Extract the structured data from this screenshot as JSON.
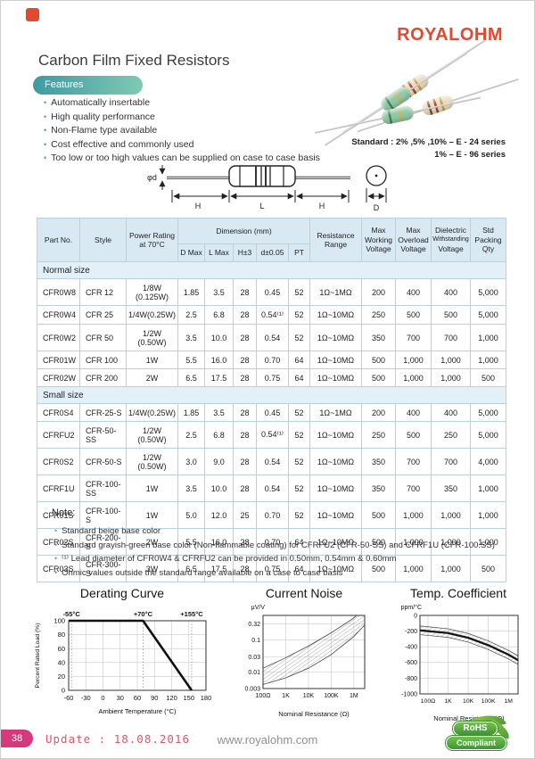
{
  "page": {
    "logo": "ROYALOHM",
    "title": "Carbon Film Fixed Resistors",
    "features_label": "Features",
    "features": [
      "Automatically insertable",
      "High quality performance",
      "Non-Flame type available",
      "Cost effective and commonly used",
      "Too low or too high values can be supplied on case to case basis"
    ],
    "standard_line1": "Standard : 2% ,5% ,10% – E - 24 series",
    "standard_line2": "1% – E - 96 series"
  },
  "diagram": {
    "phi_d": "φd",
    "h_left": "H",
    "l": "L",
    "h_right": "H",
    "d": "D"
  },
  "table": {
    "headers": {
      "part_no": "Part No.",
      "style": "Style",
      "power": "Power Rating at 70°C",
      "dimension": "Dimension (mm)",
      "d_max": "D Max",
      "l_max": "L Max",
      "h": "H±3",
      "d": "d±0.05",
      "pt": "PT",
      "resistance": "Resistance Range",
      "max_working": "Max Working Voltage",
      "max_overload": "Max Overload Voltage",
      "dielectric_1": "Dielectric",
      "dielectric_2": "Withstanding",
      "dielectric_3": "Voltage",
      "packing": "Std Packing Qty"
    },
    "sections": [
      {
        "label": "Normal size",
        "rows": [
          [
            "CFR0W8",
            "CFR 12",
            "1/8W (0.125W)",
            "1.85",
            "3.5",
            "28",
            "0.45",
            "52",
            "1Ω~1MΩ",
            "200",
            "400",
            "400",
            "5,000"
          ],
          [
            "CFR0W4",
            "CFR 25",
            "1/4W(0.25W)",
            "2.5",
            "6.8",
            "28",
            "0.54⁽¹⁾",
            "52",
            "1Ω~10MΩ",
            "250",
            "500",
            "500",
            "5,000"
          ],
          [
            "CFR0W2",
            "CFR 50",
            "1/2W (0.50W)",
            "3.5",
            "10.0",
            "28",
            "0.54",
            "52",
            "1Ω~10MΩ",
            "350",
            "700",
            "700",
            "1,000"
          ],
          [
            "CFR01W",
            "CFR 100",
            "1W",
            "5.5",
            "16.0",
            "28",
            "0.70",
            "64",
            "1Ω~10MΩ",
            "500",
            "1,000",
            "1,000",
            "1,000"
          ],
          [
            "CFR02W",
            "CFR 200",
            "2W",
            "6.5",
            "17.5",
            "28",
            "0.75",
            "64",
            "1Ω~10MΩ",
            "500",
            "1,000",
            "1,000",
            "500"
          ]
        ]
      },
      {
        "label": "Small size",
        "rows": [
          [
            "CFR0S4",
            "CFR-25-S",
            "1/4W(0.25W)",
            "1.85",
            "3.5",
            "28",
            "0.45",
            "52",
            "1Ω~1MΩ",
            "200",
            "400",
            "400",
            "5,000"
          ],
          [
            "CFRFU2",
            "CFR-50-SS",
            "1/2W (0.50W)",
            "2.5",
            "6.8",
            "28",
            "0.54⁽¹⁾",
            "52",
            "1Ω~10MΩ",
            "250",
            "500",
            "250",
            "5,000"
          ],
          [
            "CFR0S2",
            "CFR-50-S",
            "1/2W (0.50W)",
            "3.0",
            "9.0",
            "28",
            "0.54",
            "52",
            "1Ω~10MΩ",
            "350",
            "700",
            "700",
            "4,000"
          ],
          [
            "CFRF1U",
            "CFR-100-SS",
            "1W",
            "3.5",
            "10.0",
            "28",
            "0.54",
            "52",
            "1Ω~10MΩ",
            "350",
            "700",
            "350",
            "1,000"
          ],
          [
            "CFR01S",
            "CFR-100-S",
            "1W",
            "5.0",
            "12.0",
            "25",
            "0.70",
            "52",
            "1Ω~10MΩ",
            "500",
            "1,000",
            "1,000",
            "1,000"
          ],
          [
            "CFR02S",
            "CFR-200-S",
            "2W",
            "5.5",
            "16.0",
            "28",
            "0.70",
            "64",
            "1Ω~10MΩ",
            "500",
            "1,000",
            "1,000",
            "1,000"
          ],
          [
            "CFR03S",
            "CFR-300-S",
            "3W",
            "6.5",
            "17.5",
            "28",
            "0.75",
            "64",
            "1Ω~10MΩ",
            "500",
            "1,000",
            "1,000",
            "500"
          ]
        ]
      }
    ]
  },
  "note": {
    "title": "Note:",
    "items": [
      "Standard beige base color",
      "Standard grayish-green base color (Non-flammable coating) for CFRFU2 (CFR-50-SS) and CFRF1U (CFR-100.SS)",
      "⁽¹⁾ Lead diameter of CFR0W4 & CFRFU2 can be provided in 0.50mm, 0.54mm & 0.60mm",
      "Ohmic values outside the standard range available on a case to case basis"
    ]
  },
  "chart_data": [
    {
      "type": "line",
      "title": "Derating Curve",
      "xlabel": "Ambient Temperature (°C)",
      "ylabel": "Percent Rated Load (%)",
      "x_ticks": [
        -60,
        -30,
        0,
        30,
        60,
        90,
        120,
        150,
        180
      ],
      "y_ticks": [
        0,
        20,
        40,
        60,
        80,
        100
      ],
      "xlim": [
        -60,
        180
      ],
      "ylim": [
        0,
        100
      ],
      "grid": true,
      "series": [
        {
          "name": "derating",
          "points": [
            [
              -60,
              100
            ],
            [
              70,
              100
            ],
            [
              155,
              0
            ]
          ]
        }
      ],
      "annotations": [
        {
          "x": -55,
          "label": "-55°C"
        },
        {
          "x": 70,
          "label": "+70°C"
        },
        {
          "x": 155,
          "label": "+155°C"
        }
      ]
    },
    {
      "type": "area",
      "title": "Current Noise",
      "xlabel": "Nominal Resistance (Ω)",
      "ylabel": "μV/V",
      "x_scale": "log",
      "y_scale": "log",
      "x_ticks": [
        {
          "v": 100,
          "label": "100Ω"
        },
        {
          "v": 1000,
          "label": "1K"
        },
        {
          "v": 10000,
          "label": "10K"
        },
        {
          "v": 100000,
          "label": "100K"
        },
        {
          "v": 1000000,
          "label": "1M"
        }
      ],
      "y_ticks": [
        {
          "v": 0.32,
          "label": "0.32"
        },
        {
          "v": 0.1,
          "label": "0.1"
        },
        {
          "v": 0.03,
          "label": "0.03"
        },
        {
          "v": 0.01,
          "label": "0.01"
        },
        {
          "v": 0.003,
          "label": "0.003"
        }
      ],
      "xlim": [
        100,
        3000000
      ],
      "ylim": [
        0.003,
        0.6
      ],
      "grid": true,
      "band_upper": [
        [
          100,
          0.013
        ],
        [
          1000,
          0.028
        ],
        [
          10000,
          0.065
        ],
        [
          100000,
          0.17
        ],
        [
          1000000,
          0.5
        ],
        [
          3000000,
          1.0
        ]
      ],
      "band_lower": [
        [
          100,
          0.004
        ],
        [
          1000,
          0.0065
        ],
        [
          10000,
          0.013
        ],
        [
          100000,
          0.035
        ],
        [
          1000000,
          0.13
        ],
        [
          3000000,
          0.3
        ]
      ]
    },
    {
      "type": "area",
      "title": "Temp. Coefficient",
      "xlabel": "Nominal Resistance (Ω)",
      "ylabel": "ppm/°C",
      "x_scale": "log",
      "y_scale": "linear",
      "x_ticks": [
        {
          "v": 100,
          "label": "100Ω"
        },
        {
          "v": 1000,
          "label": "1K"
        },
        {
          "v": 10000,
          "label": "10K"
        },
        {
          "v": 100000,
          "label": "100K"
        },
        {
          "v": 1000000,
          "label": "1M"
        }
      ],
      "y_ticks": [
        {
          "v": 0,
          "label": "0"
        },
        {
          "v": -200,
          "label": "-200"
        },
        {
          "v": -400,
          "label": "-400"
        },
        {
          "v": -600,
          "label": "-600"
        },
        {
          "v": -800,
          "label": "-800"
        },
        {
          "v": -1000,
          "label": "-1000"
        }
      ],
      "xlim": [
        40,
        3000000
      ],
      "ylim": [
        0,
        -1000
      ],
      "grid": true,
      "center_line": [
        [
          40,
          -190
        ],
        [
          100,
          -200
        ],
        [
          1000,
          -225
        ],
        [
          10000,
          -285
        ],
        [
          100000,
          -380
        ],
        [
          1000000,
          -500
        ],
        [
          3000000,
          -570
        ]
      ],
      "band_halfwidth": 55
    }
  ],
  "footer": {
    "page_number": "38",
    "update": "Update : 18.08.2016",
    "website": "www.royalohm.com",
    "rohs_line1": "RoHS",
    "rohs_line2": "Compliant"
  },
  "colors": {
    "accent_red": "#e2492f",
    "teal": "#4a9fa5",
    "table_header_bg": "#d9e9f4",
    "pink": "#d6397c",
    "rohs_green": "#4e9b36"
  }
}
